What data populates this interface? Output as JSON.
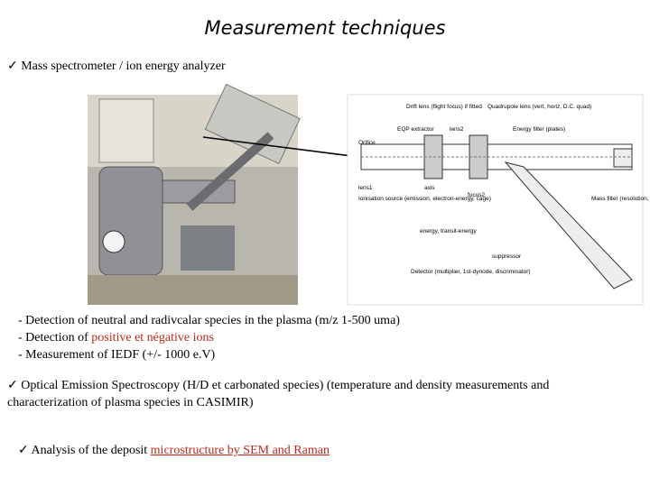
{
  "title": "Measurement techniques",
  "bullet1": {
    "text": "✓ Mass spectrometer / ion energy analyzer"
  },
  "diagram": {
    "labels": [
      "Drift lens (flight focus) if fitted",
      "Quadrupole lens (vert, horiz, D.C. quad)",
      "EQP extractor",
      "lens2",
      "Energy filter (plates)",
      "Orifice",
      "lens1",
      "axis",
      "focus2",
      "Ionisation source (emission, electron-energy, cage)",
      "Mass filter (resolution, delta-m)",
      "energy, transit-energy",
      "suppressor",
      "Detector (multiplier, 1st-dynode, discriminator)"
    ]
  },
  "details": {
    "line1": "- Detection of neutral and radivcalar species in the plasma (m/z  1-500 uma)",
    "line2": {
      "prefix": "- Detection of ",
      "highlight": "positive et négative ions"
    },
    "line3": "- Measurement of IEDF (+/-  1000 e.V)"
  },
  "bullet2": {
    "text": "✓ Optical Emission Spectroscopy  (H/D et carbonated species) (temperature and density measurements and characterization of plasma species in CASIMIR)"
  },
  "bullet3": {
    "prefix": "✓ Analysis of the deposit ",
    "highlight": "microstructure by SEM and Raman"
  }
}
